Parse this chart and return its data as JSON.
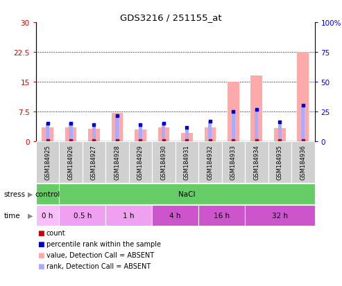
{
  "title": "GDS3216 / 251155_at",
  "samples": [
    "GSM184925",
    "GSM184926",
    "GSM184927",
    "GSM184928",
    "GSM184929",
    "GSM184930",
    "GSM184931",
    "GSM184932",
    "GSM184933",
    "GSM184934",
    "GSM184935",
    "GSM184936"
  ],
  "pink_bars": [
    3.5,
    3.5,
    3.2,
    7.2,
    3.0,
    3.5,
    2.0,
    3.5,
    15.0,
    16.5,
    3.3,
    22.5
  ],
  "blue_bars": [
    4.5,
    4.5,
    4.2,
    6.5,
    4.2,
    4.5,
    3.5,
    5.0,
    7.5,
    8.0,
    4.8,
    9.0
  ],
  "red_vals": [
    0.08,
    0.08,
    0.08,
    0.08,
    0.08,
    0.08,
    0.08,
    0.08,
    0.08,
    0.08,
    0.08,
    0.08
  ],
  "left_ylim": [
    0,
    30
  ],
  "right_ylim": [
    0,
    100
  ],
  "left_yticks": [
    0,
    7.5,
    15,
    22.5,
    30
  ],
  "right_yticks": [
    0,
    25,
    50,
    75,
    100
  ],
  "left_ytick_labels": [
    "0",
    "7.5",
    "15",
    "22.5",
    "30"
  ],
  "right_ytick_labels": [
    "0",
    "25",
    "50",
    "75",
    "100%"
  ],
  "time_data": [
    {
      "start": 0,
      "end": 1,
      "label": "0 h",
      "color": "#f9bff9"
    },
    {
      "start": 1,
      "end": 3,
      "label": "0.5 h",
      "color": "#f0a0f0"
    },
    {
      "start": 3,
      "end": 5,
      "label": "1 h",
      "color": "#f0a0f0"
    },
    {
      "start": 5,
      "end": 7,
      "label": "4 h",
      "color": "#cc55cc"
    },
    {
      "start": 7,
      "end": 9,
      "label": "16 h",
      "color": "#cc55cc"
    },
    {
      "start": 9,
      "end": 12,
      "label": "32 h",
      "color": "#cc55cc"
    }
  ],
  "stress_data": [
    {
      "start": 0,
      "end": 1,
      "label": "control",
      "color": "#66cc66"
    },
    {
      "start": 1,
      "end": 12,
      "label": "NaCl",
      "color": "#66cc66"
    }
  ],
  "legend_items": [
    {
      "label": "count",
      "color": "#cc0000"
    },
    {
      "label": "percentile rank within the sample",
      "color": "#0000cc"
    },
    {
      "label": "value, Detection Call = ABSENT",
      "color": "#ffaaaa"
    },
    {
      "label": "rank, Detection Call = ABSENT",
      "color": "#aaaaff"
    }
  ],
  "bg_color": "#ffffff",
  "pink_color": "#ffaaaa",
  "blue_color": "#aaaaff",
  "red_color": "#cc0000",
  "dark_blue_color": "#0000cc",
  "grey_box_color": "#d0d0d0"
}
